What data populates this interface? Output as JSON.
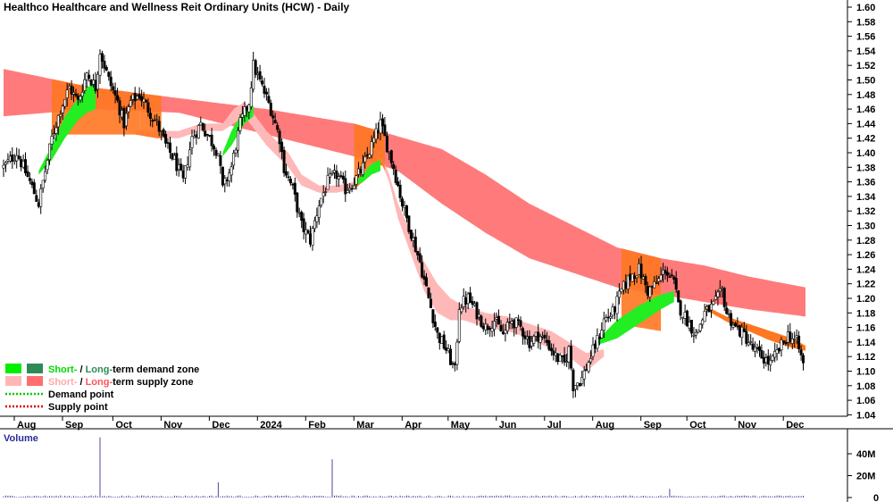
{
  "chart_data": {
    "type": "candlestick",
    "title": "Healthco Healthcare and Wellness Reit Ordinary Units (HCW) - Daily",
    "price_axis": {
      "min": 1.03,
      "max": 1.605,
      "tick_labels": [
        "1.60",
        "1.58",
        "1.56",
        "1.54",
        "1.52",
        "1.50",
        "1.48",
        "1.46",
        "1.44",
        "1.42",
        "1.40",
        "1.38",
        "1.36",
        "1.34",
        "1.32",
        "1.30",
        "1.28",
        "1.26",
        "1.24",
        "1.22",
        "1.20",
        "1.18",
        "1.16",
        "1.14",
        "1.12",
        "1.10",
        "1.08",
        "1.06",
        "1.04"
      ]
    },
    "x_axis": {
      "month_labels": [
        "Aug",
        "Sep",
        "Oct",
        "Nov",
        "Dec",
        "2024",
        "Feb",
        "Mar",
        "Apr",
        "May",
        "Jun",
        "Jul",
        "Aug",
        "Sep",
        "Oct",
        "Nov",
        "Dec"
      ]
    },
    "price_keypoints": [
      [
        0,
        1.38
      ],
      [
        6,
        1.4
      ],
      [
        12,
        1.36
      ],
      [
        16,
        1.33
      ],
      [
        18,
        1.36
      ],
      [
        22,
        1.42
      ],
      [
        26,
        1.46
      ],
      [
        30,
        1.49
      ],
      [
        34,
        1.47
      ],
      [
        38,
        1.51
      ],
      [
        42,
        1.49
      ],
      [
        44,
        1.54
      ],
      [
        48,
        1.5
      ],
      [
        52,
        1.47
      ],
      [
        55,
        1.44
      ],
      [
        58,
        1.47
      ],
      [
        62,
        1.48
      ],
      [
        66,
        1.46
      ],
      [
        70,
        1.44
      ],
      [
        74,
        1.41
      ],
      [
        78,
        1.39
      ],
      [
        82,
        1.36
      ],
      [
        86,
        1.42
      ],
      [
        90,
        1.44
      ],
      [
        94,
        1.42
      ],
      [
        98,
        1.4
      ],
      [
        100,
        1.35
      ],
      [
        104,
        1.38
      ],
      [
        108,
        1.44
      ],
      [
        112,
        1.47
      ],
      [
        114,
        1.52
      ],
      [
        118,
        1.49
      ],
      [
        122,
        1.46
      ],
      [
        126,
        1.42
      ],
      [
        128,
        1.38
      ],
      [
        132,
        1.35
      ],
      [
        136,
        1.3
      ],
      [
        140,
        1.28
      ],
      [
        144,
        1.33
      ],
      [
        148,
        1.36
      ],
      [
        152,
        1.37
      ],
      [
        156,
        1.35
      ],
      [
        160,
        1.36
      ],
      [
        164,
        1.38
      ],
      [
        168,
        1.41
      ],
      [
        172,
        1.44
      ],
      [
        174,
        1.42
      ],
      [
        178,
        1.38
      ],
      [
        182,
        1.33
      ],
      [
        186,
        1.29
      ],
      [
        190,
        1.25
      ],
      [
        194,
        1.2
      ],
      [
        198,
        1.15
      ],
      [
        202,
        1.13
      ],
      [
        206,
        1.1
      ],
      [
        208,
        1.19
      ],
      [
        212,
        1.2
      ],
      [
        216,
        1.18
      ],
      [
        220,
        1.16
      ],
      [
        224,
        1.17
      ],
      [
        228,
        1.15
      ],
      [
        232,
        1.17
      ],
      [
        236,
        1.16
      ],
      [
        240,
        1.14
      ],
      [
        244,
        1.15
      ],
      [
        248,
        1.14
      ],
      [
        252,
        1.12
      ],
      [
        256,
        1.11
      ],
      [
        258,
        1.13
      ],
      [
        260,
        1.08
      ],
      [
        264,
        1.09
      ],
      [
        268,
        1.12
      ],
      [
        272,
        1.15
      ],
      [
        274,
        1.17
      ],
      [
        278,
        1.18
      ],
      [
        282,
        1.21
      ],
      [
        286,
        1.23
      ],
      [
        290,
        1.24
      ],
      [
        294,
        1.21
      ],
      [
        298,
        1.22
      ],
      [
        302,
        1.24
      ],
      [
        306,
        1.22
      ],
      [
        308,
        1.19
      ],
      [
        312,
        1.17
      ],
      [
        316,
        1.15
      ],
      [
        320,
        1.18
      ],
      [
        324,
        1.19
      ],
      [
        328,
        1.21
      ],
      [
        330,
        1.18
      ],
      [
        334,
        1.16
      ],
      [
        338,
        1.15
      ],
      [
        342,
        1.13
      ],
      [
        346,
        1.12
      ],
      [
        350,
        1.11
      ],
      [
        354,
        1.13
      ],
      [
        358,
        1.15
      ],
      [
        362,
        1.14
      ],
      [
        364,
        1.12
      ],
      [
        366,
        1.1
      ]
    ],
    "long_term_supply_band": {
      "upper": [
        [
          0,
          1.515
        ],
        [
          40,
          1.49
        ],
        [
          80,
          1.475
        ],
        [
          120,
          1.46
        ],
        [
          160,
          1.44
        ],
        [
          200,
          1.405
        ],
        [
          220,
          1.37
        ],
        [
          240,
          1.33
        ],
        [
          260,
          1.3
        ],
        [
          280,
          1.27
        ],
        [
          300,
          1.255
        ],
        [
          320,
          1.245
        ],
        [
          340,
          1.23
        ],
        [
          366,
          1.215
        ]
      ],
      "lower": [
        [
          0,
          1.45
        ],
        [
          40,
          1.46
        ],
        [
          80,
          1.455
        ],
        [
          120,
          1.425
        ],
        [
          160,
          1.395
        ],
        [
          180,
          1.375
        ],
        [
          200,
          1.33
        ],
        [
          220,
          1.29
        ],
        [
          240,
          1.255
        ],
        [
          260,
          1.235
        ],
        [
          280,
          1.215
        ],
        [
          300,
          1.205
        ],
        [
          320,
          1.195
        ],
        [
          340,
          1.185
        ],
        [
          366,
          1.175
        ]
      ]
    },
    "short_term_supply_band": {
      "upper": [
        [
          60,
          1.43
        ],
        [
          70,
          1.43
        ],
        [
          80,
          1.43
        ],
        [
          90,
          1.44
        ],
        [
          100,
          1.44
        ],
        [
          105,
          1.46
        ],
        [
          110,
          1.47
        ],
        [
          120,
          1.43
        ],
        [
          130,
          1.4
        ],
        [
          136,
          1.37
        ],
        [
          144,
          1.355
        ],
        [
          152,
          1.355
        ],
        [
          160,
          1.36
        ],
        [
          168,
          1.38
        ],
        [
          172,
          1.4
        ],
        [
          176,
          1.37
        ],
        [
          180,
          1.33
        ],
        [
          186,
          1.29
        ],
        [
          192,
          1.25
        ],
        [
          198,
          1.22
        ],
        [
          204,
          1.2
        ],
        [
          210,
          1.19
        ],
        [
          220,
          1.18
        ],
        [
          230,
          1.175
        ],
        [
          240,
          1.165
        ],
        [
          250,
          1.155
        ],
        [
          258,
          1.14
        ],
        [
          266,
          1.125
        ],
        [
          274,
          1.13
        ]
      ],
      "lower": [
        [
          60,
          1.425
        ],
        [
          70,
          1.42
        ],
        [
          80,
          1.42
        ],
        [
          90,
          1.43
        ],
        [
          100,
          1.43
        ],
        [
          105,
          1.44
        ],
        [
          110,
          1.45
        ],
        [
          120,
          1.41
        ],
        [
          130,
          1.38
        ],
        [
          136,
          1.355
        ],
        [
          144,
          1.345
        ],
        [
          152,
          1.345
        ],
        [
          160,
          1.35
        ],
        [
          168,
          1.37
        ],
        [
          172,
          1.39
        ],
        [
          176,
          1.36
        ],
        [
          180,
          1.31
        ],
        [
          186,
          1.26
        ],
        [
          192,
          1.21
        ],
        [
          198,
          1.18
        ],
        [
          204,
          1.17
        ],
        [
          210,
          1.17
        ],
        [
          220,
          1.16
        ],
        [
          230,
          1.155
        ],
        [
          240,
          1.145
        ],
        [
          250,
          1.13
        ],
        [
          258,
          1.12
        ],
        [
          266,
          1.1
        ],
        [
          274,
          1.12
        ]
      ]
    },
    "late_short_supply_band": {
      "upper": [
        [
          320,
          1.19
        ],
        [
          330,
          1.175
        ],
        [
          340,
          1.165
        ],
        [
          350,
          1.155
        ],
        [
          360,
          1.145
        ],
        [
          366,
          1.135
        ]
      ],
      "lower": [
        [
          320,
          1.185
        ],
        [
          330,
          1.168
        ],
        [
          340,
          1.155
        ],
        [
          350,
          1.142
        ],
        [
          360,
          1.132
        ],
        [
          366,
          1.128
        ]
      ]
    },
    "short_term_demand_bands": [
      {
        "upper": [
          [
            16,
            1.375
          ],
          [
            22,
            1.41
          ],
          [
            28,
            1.45
          ],
          [
            34,
            1.475
          ],
          [
            38,
            1.49
          ],
          [
            42,
            1.495
          ]
        ],
        "lower": [
          [
            16,
            1.37
          ],
          [
            22,
            1.39
          ],
          [
            28,
            1.42
          ],
          [
            34,
            1.445
          ],
          [
            38,
            1.455
          ],
          [
            42,
            1.46
          ]
        ]
      },
      {
        "upper": [
          [
            100,
            1.4
          ],
          [
            104,
            1.43
          ],
          [
            110,
            1.46
          ],
          [
            114,
            1.465
          ]
        ],
        "lower": [
          [
            100,
            1.395
          ],
          [
            104,
            1.41
          ],
          [
            110,
            1.44
          ],
          [
            114,
            1.45
          ]
        ]
      },
      {
        "upper": [
          [
            160,
            1.36
          ],
          [
            164,
            1.37
          ],
          [
            168,
            1.385
          ],
          [
            172,
            1.39
          ]
        ],
        "lower": [
          [
            160,
            1.355
          ],
          [
            164,
            1.36
          ],
          [
            168,
            1.37
          ],
          [
            172,
            1.375
          ]
        ]
      },
      {
        "upper": [
          [
            270,
            1.14
          ],
          [
            280,
            1.17
          ],
          [
            290,
            1.19
          ],
          [
            300,
            1.205
          ],
          [
            306,
            1.21
          ]
        ],
        "lower": [
          [
            270,
            1.135
          ],
          [
            280,
            1.145
          ],
          [
            290,
            1.165
          ],
          [
            300,
            1.185
          ],
          [
            306,
            1.195
          ]
        ]
      }
    ],
    "zone_overlap_ranges": [
      [
        22,
        62
      ],
      [
        62,
        72
      ],
      [
        160,
        174
      ],
      [
        282,
        300
      ]
    ],
    "volume_axis": {
      "tick_labels": [
        "40M",
        "20M",
        "0"
      ],
      "max": 60
    },
    "volume_spikes": [
      [
        44,
        55
      ],
      [
        98,
        14
      ],
      [
        150,
        35
      ],
      [
        304,
        8
      ]
    ],
    "legend": [
      {
        "swatches": [
          "#00ee00",
          "#2e8b57"
        ],
        "label_a": "Short-",
        "label_b": " / ",
        "label_c": "Long-",
        "label_d": "term demand zone",
        "color_a": "#00dd00",
        "color_c": "#2e8b57"
      },
      {
        "swatches": [
          "#ffb6b6",
          "#ff6e6e"
        ],
        "label_a": "Short-",
        "label_b": " / ",
        "label_c": "Long-",
        "label_d": "term supply zone",
        "color_a": "#ffaaaa",
        "color_c": "#ff5555"
      },
      {
        "dots": "#00cc00",
        "label": "Demand point"
      },
      {
        "dots": "#dd0000",
        "label": "Supply point"
      }
    ],
    "volume_label": "Volume",
    "colors": {
      "long_supply": "#ff7b7b",
      "short_supply": "#ffb8b8",
      "demand": "#22ee22",
      "overlap": "#ff7722",
      "bar": "#000000",
      "volume_bar": "#4a4aa0"
    }
  }
}
